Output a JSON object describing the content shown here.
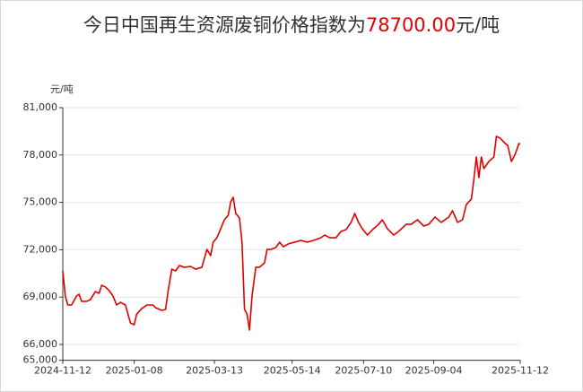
{
  "chart_data": {
    "type": "line",
    "title_parts": [
      "今日中国再生资源废铜价格指数为",
      "78700.00",
      "元/吨"
    ],
    "title_colors": [
      "#333333",
      "#e00000",
      "#333333"
    ],
    "y_unit_label": "元/吨",
    "x": [
      "2024-11-12",
      "2024-11-14",
      "2024-11-16",
      "2024-11-19",
      "2024-11-23",
      "2024-11-25",
      "2024-11-27",
      "2024-12-01",
      "2024-12-04",
      "2024-12-08",
      "2024-12-11",
      "2024-12-13",
      "2024-12-16",
      "2024-12-19",
      "2024-12-22",
      "2024-12-25",
      "2024-12-28",
      "2025-01-01",
      "2025-01-05",
      "2025-01-08",
      "2025-01-10",
      "2025-01-14",
      "2025-01-18",
      "2025-01-23",
      "2025-01-25",
      "2025-01-30",
      "2025-02-02",
      "2025-02-04",
      "2025-02-07",
      "2025-02-10",
      "2025-02-13",
      "2025-02-17",
      "2025-02-22",
      "2025-02-26",
      "2025-03-03",
      "2025-03-07",
      "2025-03-10",
      "2025-03-12",
      "2025-03-15",
      "2025-03-18",
      "2025-03-21",
      "2025-03-24",
      "2025-03-26",
      "2025-03-28",
      "2025-03-30",
      "2025-04-02",
      "2025-04-04",
      "2025-04-06",
      "2025-04-08",
      "2025-04-10",
      "2025-04-12",
      "2025-04-15",
      "2025-04-18",
      "2025-04-22",
      "2025-04-24",
      "2025-04-27",
      "2025-05-01",
      "2025-05-04",
      "2025-05-07",
      "2025-05-11",
      "2025-05-16",
      "2025-05-21",
      "2025-05-26",
      "2025-05-31",
      "2025-06-06",
      "2025-06-09",
      "2025-06-13",
      "2025-06-18",
      "2025-06-22",
      "2025-06-26",
      "2025-06-30",
      "2025-07-03",
      "2025-07-06",
      "2025-07-09",
      "2025-07-13",
      "2025-07-18",
      "2025-07-22",
      "2025-07-25",
      "2025-07-29",
      "2025-08-03",
      "2025-08-07",
      "2025-08-13",
      "2025-08-17",
      "2025-08-22",
      "2025-08-27",
      "2025-08-31",
      "2025-09-05",
      "2025-09-10",
      "2025-09-16",
      "2025-09-19",
      "2025-09-23",
      "2025-09-27",
      "2025-09-30",
      "2025-10-04",
      "2025-10-06",
      "2025-10-08",
      "2025-10-10",
      "2025-10-12",
      "2025-10-14",
      "2025-10-18",
      "2025-10-22",
      "2025-10-24",
      "2025-10-27",
      "2025-10-31",
      "2025-11-02",
      "2025-11-05",
      "2025-11-08",
      "2025-11-11",
      "2025-11-12"
    ],
    "series": [
      {
        "color": "#e00000",
        "values": [
          70660,
          69070,
          68500,
          68500,
          69070,
          69180,
          68730,
          68730,
          68840,
          69350,
          69240,
          69750,
          69640,
          69410,
          69070,
          68500,
          68670,
          68500,
          67360,
          67250,
          67930,
          68270,
          68500,
          68500,
          68330,
          68160,
          68220,
          69350,
          70770,
          70660,
          71000,
          70890,
          70940,
          70770,
          70890,
          72020,
          71630,
          72480,
          72760,
          73330,
          73900,
          74180,
          75030,
          75320,
          74300,
          74010,
          72480,
          68220,
          67930,
          66910,
          69070,
          70890,
          70890,
          71170,
          72020,
          72020,
          72140,
          72480,
          72190,
          72370,
          72480,
          72590,
          72480,
          72590,
          72760,
          72930,
          72760,
          72760,
          73160,
          73270,
          73730,
          74300,
          73730,
          73330,
          72930,
          73330,
          73610,
          73900,
          73330,
          72930,
          73160,
          73610,
          73610,
          73900,
          73500,
          73610,
          74070,
          73730,
          74070,
          74470,
          73730,
          73900,
          74860,
          75200,
          76450,
          77880,
          76570,
          77880,
          77140,
          77590,
          77880,
          79180,
          79070,
          78730,
          78610,
          77590,
          78050,
          78730,
          78700
        ]
      }
    ],
    "xlim": [
      "2024-11-12",
      "2025-11-12"
    ],
    "xticks": [
      "2024-11-12",
      "2025-01-08",
      "2025-03-13",
      "2025-05-14",
      "2025-07-10",
      "2025-09-04",
      "2025-11-12"
    ],
    "ylim": [
      65000,
      81000
    ],
    "yticks": [
      {
        "value": 65000,
        "label": "65,000"
      },
      {
        "value": 66000,
        "label": "66,000"
      },
      {
        "value": 69000,
        "label": "69,000"
      },
      {
        "value": 72000,
        "label": "72,000"
      },
      {
        "value": 75000,
        "label": "75,000"
      },
      {
        "value": 78000,
        "label": "78,000"
      },
      {
        "value": 81000,
        "label": "81,000"
      }
    ],
    "grid": true
  }
}
